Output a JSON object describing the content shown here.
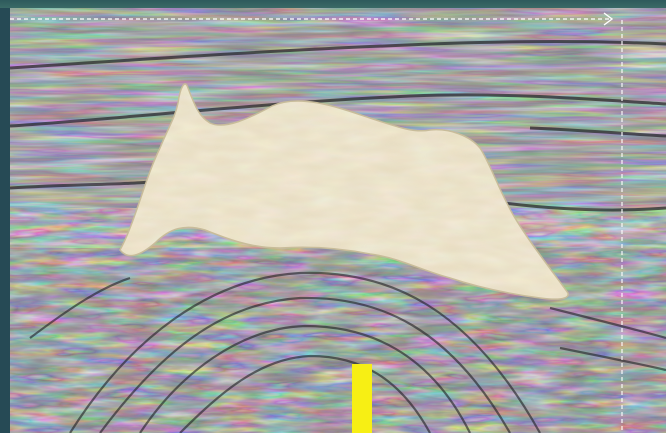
{
  "image": {
    "subject": "seismic-section-with-salt-body",
    "colors": {
      "frame": "#264a55",
      "seismic_base": "#8a8a8f",
      "salt_body": "#e7dcc0",
      "marker": "#f7ef14",
      "overlay_line": "#ffffff"
    }
  }
}
